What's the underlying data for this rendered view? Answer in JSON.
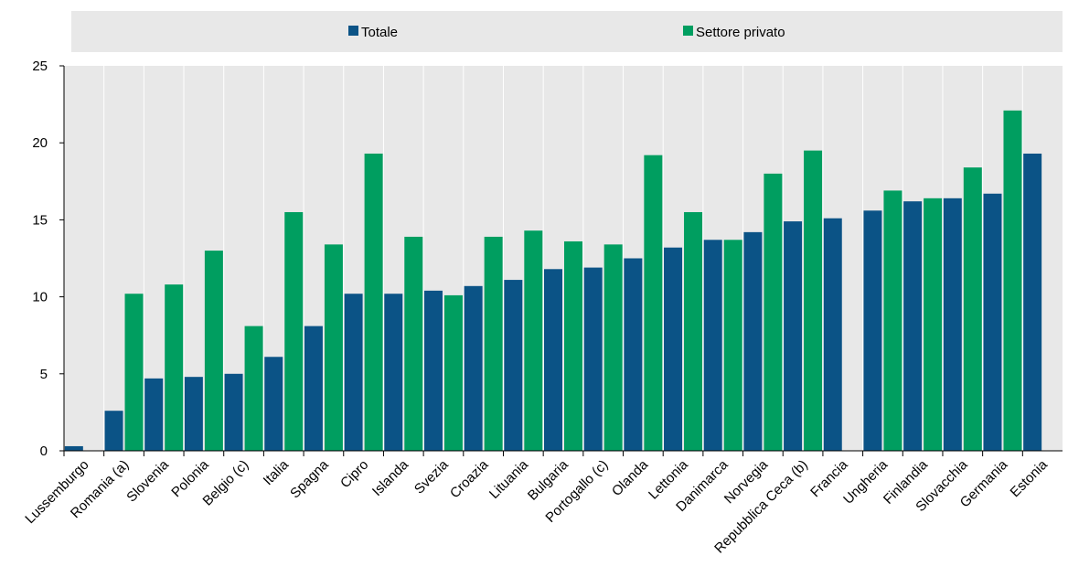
{
  "chart_data": {
    "type": "bar",
    "categories": [
      "Lussemburgo",
      "Romania (a)",
      "Slovenia",
      "Polonia",
      "Belgio (c)",
      "Italia",
      "Spagna",
      "Cipro",
      "Islanda",
      "Svezia",
      "Croazia",
      "Lituania",
      "Bulgaria",
      "Portogallo (c)",
      "Olanda",
      "Lettonia",
      "Danimarca",
      "Norvegia",
      "Repubblica Ceca (b)",
      "Francia",
      "Ungheria",
      "Finlandia",
      "Slovacchia",
      "Germania",
      "Estonia"
    ],
    "series": [
      {
        "name": "Totale",
        "values": [
          0.3,
          2.6,
          4.7,
          4.8,
          5.0,
          6.1,
          8.1,
          10.2,
          10.2,
          10.4,
          10.7,
          11.1,
          11.8,
          11.9,
          12.5,
          13.2,
          13.7,
          14.2,
          14.9,
          15.1,
          15.6,
          16.2,
          16.4,
          16.7,
          19.3
        ]
      },
      {
        "name": "Settore privato",
        "values": [
          null,
          10.2,
          10.8,
          13.0,
          8.1,
          15.5,
          13.4,
          19.3,
          13.9,
          10.1,
          13.9,
          14.3,
          13.6,
          13.4,
          19.2,
          15.5,
          13.7,
          18.0,
          19.5,
          null,
          16.9,
          16.4,
          18.4,
          22.1,
          null
        ]
      }
    ],
    "ylim": [
      0,
      25
    ],
    "yticks": [
      "0",
      "5",
      "10",
      "15",
      "20",
      "25"
    ],
    "title": "",
    "xlabel": "",
    "ylabel": "",
    "legend_position": "top",
    "grid": "vertical",
    "colors": {
      "Totale": "#0b5386",
      "Settore privato": "#009e60",
      "plot_background": "#e8e8e8",
      "gridline": "#ffffff"
    }
  }
}
